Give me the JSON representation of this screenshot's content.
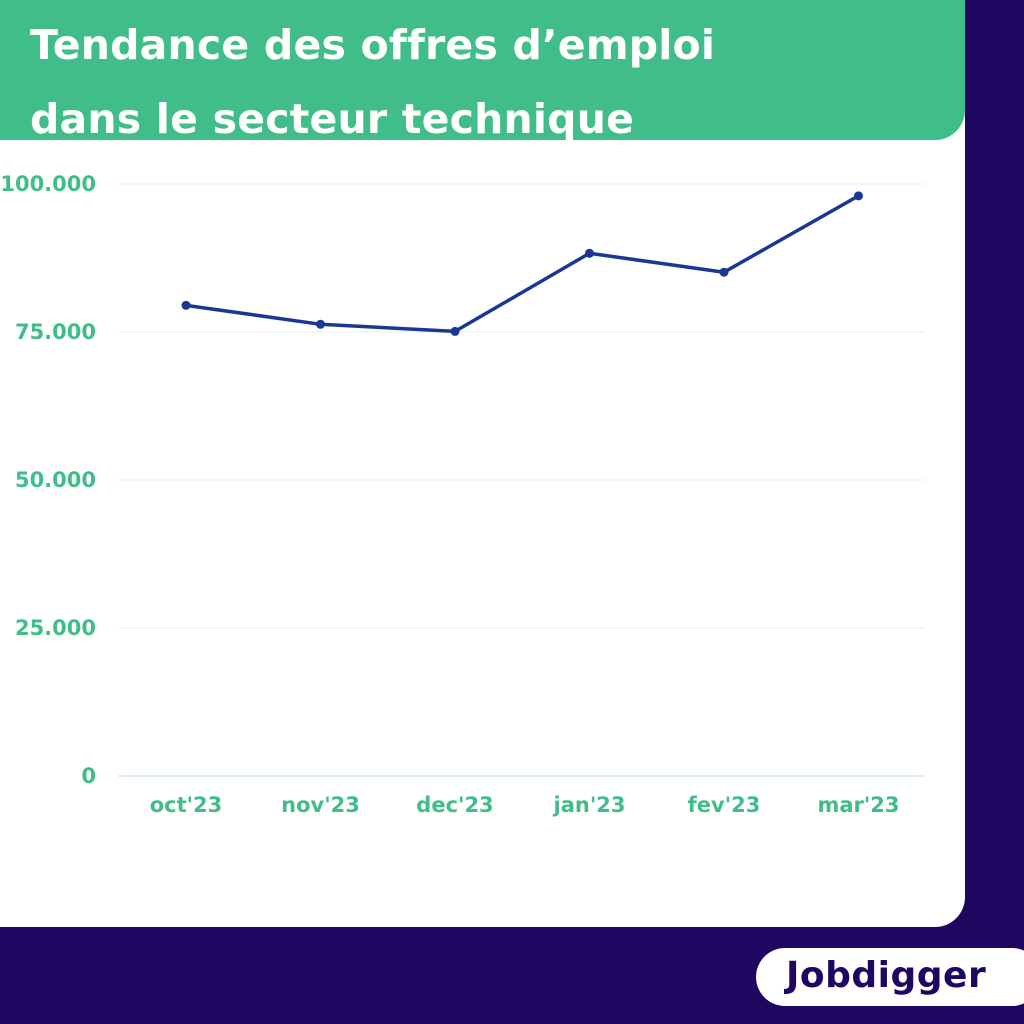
{
  "header": {
    "title_line1": "Tendance des offres d’emploi",
    "title_line2": "dans le secteur technique"
  },
  "brand": {
    "logo_text": "Jobdigger"
  },
  "colors": {
    "background": "#1f0661",
    "header_green": "#41bd8a",
    "tick_label_green": "#41bd8a",
    "line_blue": "#1a3794",
    "gridline": "#dff3ec",
    "card": "#ffffff"
  },
  "chart_data": {
    "type": "line",
    "title": "Tendance des offres d’emploi dans le secteur technique",
    "xlabel": "",
    "ylabel": "",
    "categories": [
      "oct'23",
      "nov'23",
      "dec'23",
      "jan'23",
      "fev'23",
      "mar'23"
    ],
    "series": [
      {
        "values": [
          79500,
          76300,
          75100,
          88300,
          85100,
          98000
        ]
      }
    ],
    "ylim": [
      0,
      100000
    ],
    "yticks": [
      0,
      25000,
      50000,
      75000,
      100000
    ],
    "ytick_labels": [
      "0",
      "25.000",
      "50.000",
      "75.000",
      "100.000"
    ],
    "grid": true,
    "legend": "none"
  }
}
